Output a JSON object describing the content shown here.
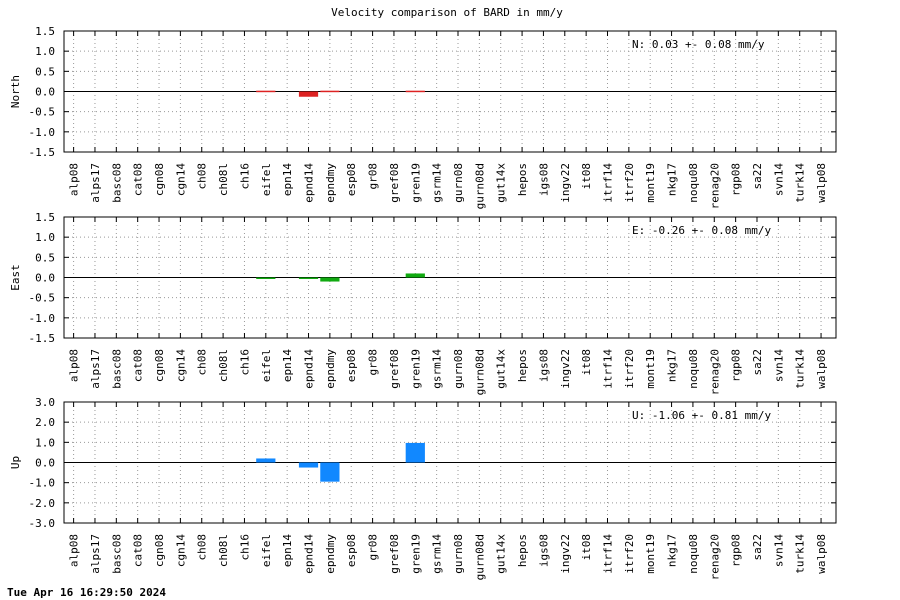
{
  "chart_data": {
    "type": "bar",
    "title": "Velocity comparison of BARD in mm/y",
    "categories": [
      "alp08",
      "alps17",
      "basc08",
      "cat08",
      "cgn08",
      "cgn14",
      "ch08",
      "ch08l",
      "ch16",
      "eifel",
      "epn14",
      "epnd14",
      "epndmy",
      "esp08",
      "gr08",
      "gref08",
      "gren19",
      "gsrm14",
      "gurn08",
      "gurn08d",
      "gut14x",
      "hepos",
      "igs08",
      "ingv22",
      "it08",
      "itrf14",
      "itrf20",
      "mont19",
      "nkg17",
      "noqu08",
      "renag20",
      "rgp08",
      "sa22",
      "svn14",
      "turk14",
      "walp08"
    ],
    "panels": [
      {
        "ylabel": "North",
        "ylim": [
          -1.5,
          1.5
        ],
        "yticks": [
          "1.5",
          "1.0",
          "0.5",
          "0.0",
          "-0.5",
          "-1.0",
          "-1.5"
        ],
        "annotation": "N:   0.03 +-  0.08 mm/y",
        "color": "#dd2222",
        "values": [
          0,
          0,
          0,
          0,
          0,
          0,
          0,
          0,
          0,
          0.02,
          0,
          -0.13,
          0.02,
          0,
          0,
          0,
          0.02,
          0,
          0,
          0,
          0,
          0,
          0,
          0,
          0,
          0,
          0,
          0,
          0,
          0,
          0,
          0,
          0,
          0,
          0,
          0
        ]
      },
      {
        "ylabel": "East",
        "ylim": [
          -1.5,
          1.5
        ],
        "yticks": [
          "1.5",
          "1.0",
          "0.5",
          "0.0",
          "-0.5",
          "-1.0",
          "-1.5"
        ],
        "annotation": "E:  -0.26 +-  0.08 mm/y",
        "color": "#11aa11",
        "values": [
          0,
          0,
          0,
          0,
          0,
          0,
          0,
          0,
          0,
          -0.03,
          0,
          -0.03,
          -0.1,
          0,
          0,
          0,
          0.1,
          0,
          0,
          0,
          0,
          0,
          0,
          0,
          0,
          0,
          0,
          0,
          0,
          0,
          0,
          0,
          0,
          0,
          0,
          0
        ]
      },
      {
        "ylabel": "Up",
        "ylim": [
          -3.0,
          3.0
        ],
        "yticks": [
          "3.0",
          "2.0",
          "1.0",
          "0.0",
          "-1.0",
          "-2.0",
          "-3.0"
        ],
        "annotation": "U:  -1.06 +-  0.81 mm/y",
        "color": "#1188ff",
        "values": [
          0,
          0,
          0,
          0,
          0,
          0,
          0,
          0,
          0,
          0.2,
          0,
          -0.25,
          -0.95,
          0,
          0,
          0,
          0.97,
          0,
          0,
          0,
          0,
          0,
          0,
          0,
          0,
          0,
          0,
          0,
          0,
          0,
          0,
          0,
          0,
          0,
          0,
          0
        ]
      }
    ],
    "grid": true,
    "legend": "none"
  },
  "footer": {
    "timestamp": "Tue Apr 16 16:29:50 2024"
  }
}
